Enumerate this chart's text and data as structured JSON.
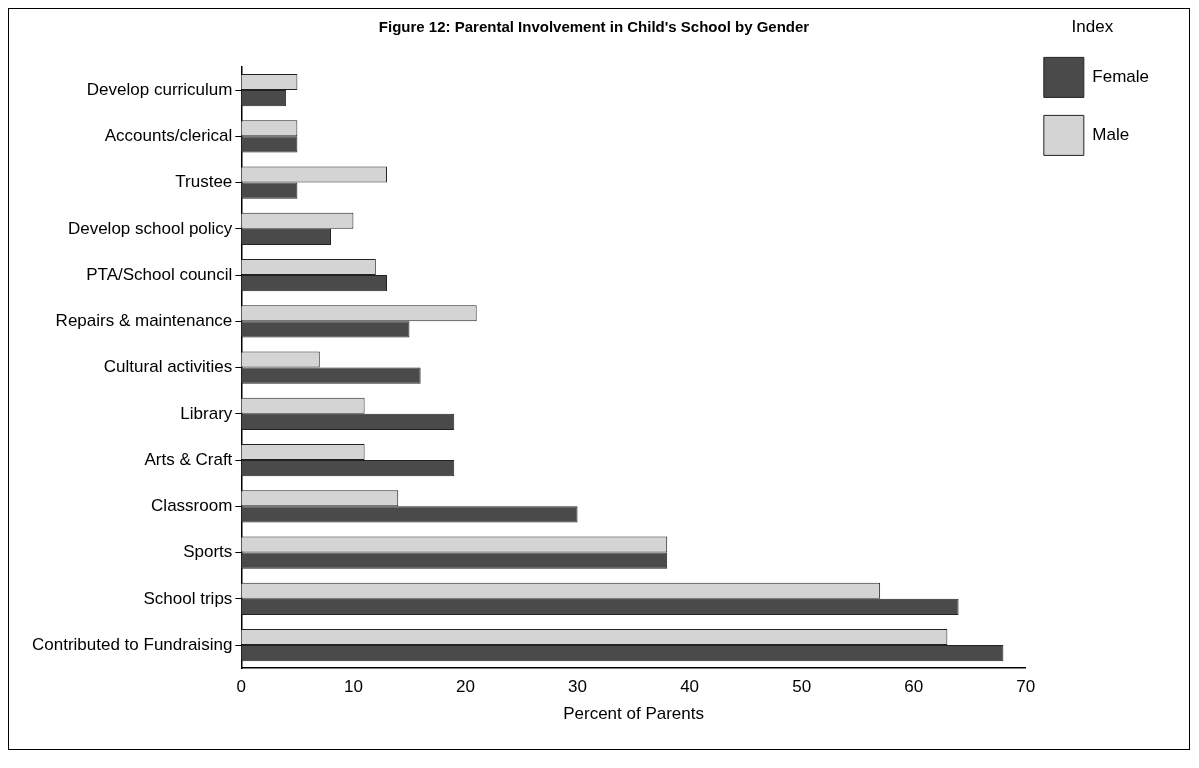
{
  "chart_data": {
    "type": "bar",
    "orientation": "horizontal",
    "title": "Figure 12: Parental Involvement in Child's School by Gender",
    "xlabel": "Percent of Parents",
    "legend_title": "Index",
    "legend": "top right",
    "grid": false,
    "categories": [
      "Develop curriculum",
      "Accounts/clerical",
      "Trustee",
      "Develop school policy",
      "PTA/School council",
      "Repairs & maintenance",
      "Cultural activities",
      "Library",
      "Arts & Craft",
      "Classroom",
      "Sports",
      "School trips",
      "Contributed to Fundraising"
    ],
    "xlim": [
      0,
      70
    ],
    "xticks": [
      0,
      10,
      20,
      30,
      40,
      50,
      60,
      70
    ],
    "series": [
      {
        "name": "Male",
        "color": "#d4d4d4",
        "values": [
          5,
          5,
          13,
          10,
          12,
          21,
          7,
          11,
          11,
          14,
          38,
          57,
          63
        ]
      },
      {
        "name": "Female",
        "color": "#4a4a4a",
        "values": [
          4,
          5,
          5,
          8,
          13,
          15,
          16,
          19,
          19,
          30,
          38,
          64,
          68
        ]
      }
    ]
  }
}
